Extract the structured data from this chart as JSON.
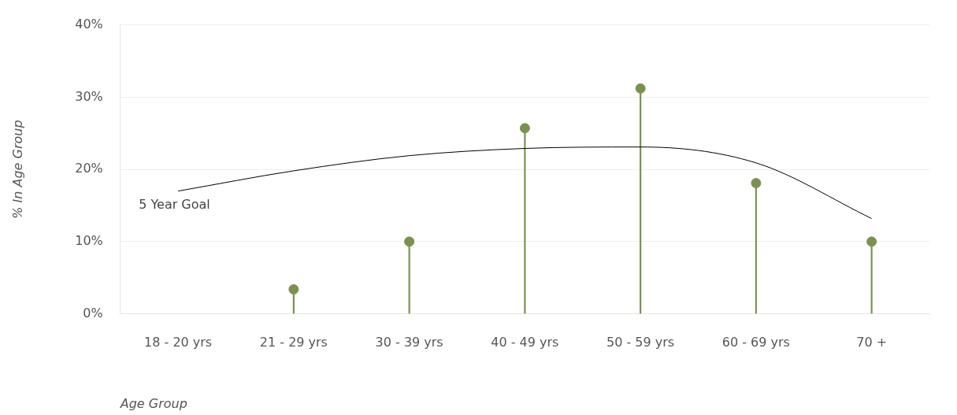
{
  "chart_data": {
    "type": "lollipop",
    "xlabel": "Age Group",
    "ylabel": "% In Age Group",
    "categories": [
      "18 - 20 yrs",
      "21 - 29 yrs",
      "30 - 39 yrs",
      "40 - 49 yrs",
      "50 - 59 yrs",
      "60 - 69 yrs",
      "70 +"
    ],
    "series": [
      {
        "color": "#7a9152",
        "values": [
          null,
          3.4,
          10,
          25.7,
          31.2,
          18.1,
          10
        ]
      },
      {
        "type": "line",
        "name": "5 Year Goal",
        "color": "#000000",
        "marker": "none",
        "values": [
          17.0,
          19.8,
          21.9,
          22.9,
          23.1,
          20.9,
          13.2
        ]
      }
    ],
    "ylim": [
      0,
      40
    ],
    "yticks": [
      {
        "value": 0,
        "label": "0%"
      },
      {
        "value": 10,
        "label": "10%"
      },
      {
        "value": 20,
        "label": "20%"
      },
      {
        "value": 30,
        "label": "30%"
      },
      {
        "value": 40,
        "label": "40%"
      }
    ],
    "grid": "y",
    "marker": "circle",
    "legend": false
  }
}
